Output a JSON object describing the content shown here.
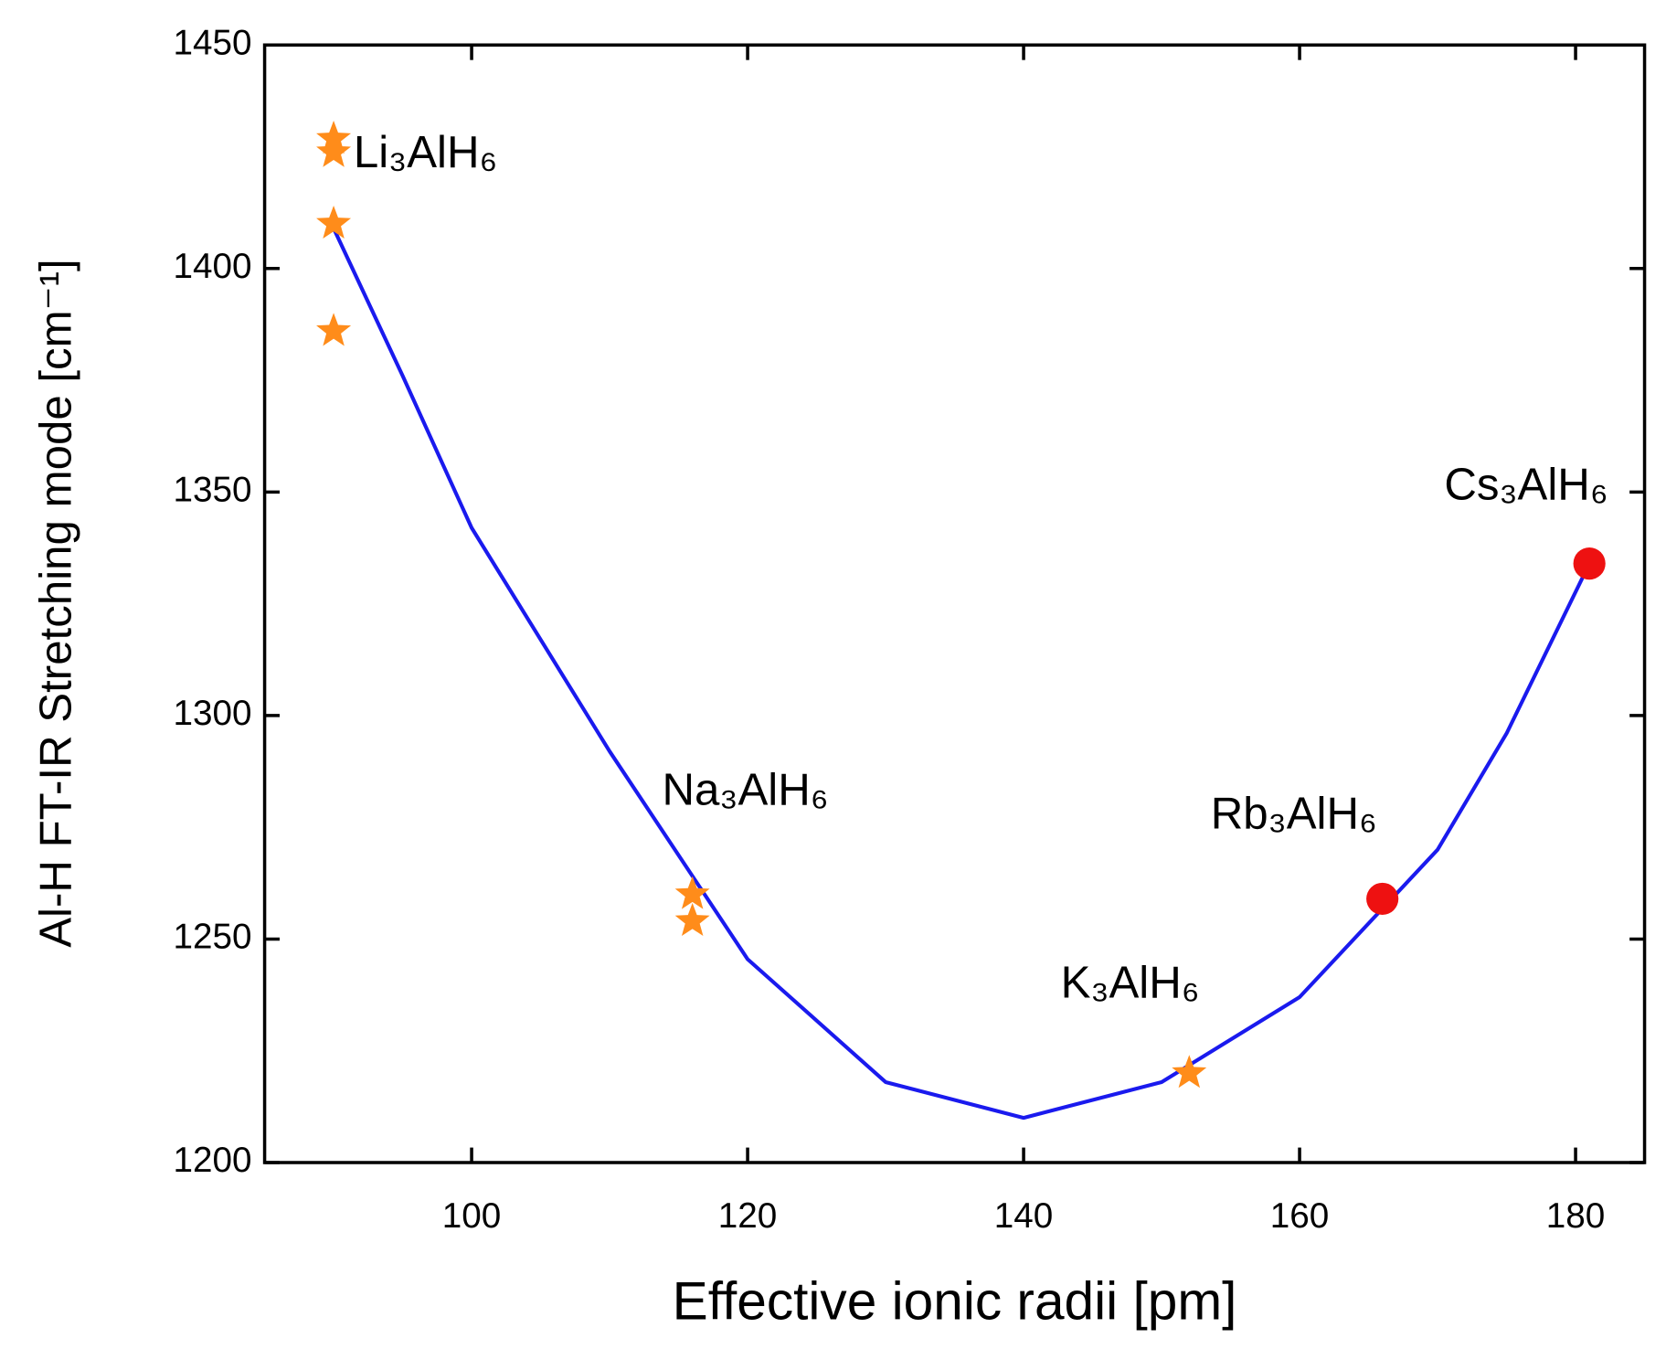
{
  "chart_data": {
    "type": "scatter",
    "x_label": "Effective ionic radii [pm]",
    "y_label": "Al-H FT-IR Stretching mode [cm⁻¹]",
    "xlim": [
      85,
      185
    ],
    "ylim": [
      1200,
      1450
    ],
    "xticks": [
      100,
      120,
      140,
      160,
      180
    ],
    "yticks": [
      1200,
      1250,
      1300,
      1350,
      1400,
      1450
    ],
    "series": [
      {
        "marker": "star",
        "color": "#ff8c1a",
        "x": [
          90,
          90,
          90,
          90,
          116,
          116,
          152
        ],
        "values": [
          1429,
          1426,
          1410,
          1386,
          1260,
          1254,
          1220
        ]
      },
      {
        "marker": "circle",
        "color": "#ee1111",
        "x": [
          166,
          181
        ],
        "values": [
          1259,
          1334
        ]
      },
      {
        "marker": "line",
        "color": "#1a1aee",
        "x": [
          90,
          95,
          100,
          110,
          120,
          130,
          140,
          150,
          160,
          170,
          175,
          181
        ],
        "values": [
          1409,
          1376,
          1342,
          1292,
          1245.5,
          1218,
          1210,
          1218,
          1237,
          1270,
          1296,
          1334
        ]
      }
    ],
    "annotations": [
      "Li₃AlH₆",
      "Na₃AlH₆",
      "K₃AlH₆",
      "Rb₃AlH₆",
      "Cs₃AlH₆"
    ]
  }
}
